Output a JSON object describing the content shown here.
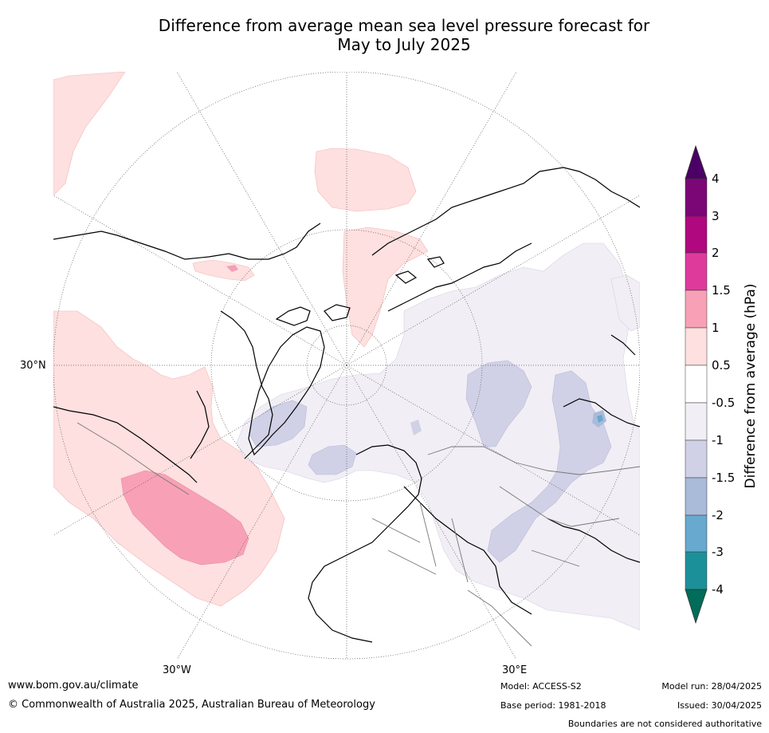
{
  "title": {
    "line1": "Difference from average mean sea level pressure forecast for",
    "line2": "May to July 2025"
  },
  "map": {
    "projection": "north polar stereographic",
    "longitude_labels": [
      "30°W",
      "30°E"
    ],
    "latitude_labels": [
      "30°N"
    ]
  },
  "colorbar": {
    "title": "Difference from average (hPa)",
    "ticks": [
      "4",
      "3",
      "2",
      "1.5",
      "1",
      "0.5",
      "-0.5",
      "-1",
      "-1.5",
      "-2",
      "-3",
      "-4"
    ],
    "colors": {
      "above_4": "#4b0066",
      "3_to_4": "#7b0676",
      "2_to_3": "#b0087e",
      "1.5_to_2": "#de3a9b",
      "1_to_1.5": "#f8a1b6",
      "0.5_to_1": "#fde0df",
      "neutral": "#ffffff",
      "-1_to_-0.5": "#f1eef5",
      "-1.5_to_-1": "#d0d1e6",
      "-2_to_-1.5": "#a9bbd9",
      "-3_to_-2": "#67a9cf",
      "-4_to_-3": "#1c9099",
      "below_-4": "#016c59"
    }
  },
  "footer": {
    "url": "www.bom.gov.au/climate",
    "copyright": "© Commonwealth of Australia 2025, Australian Bureau of Meteorology",
    "model": "Model: ACCESS-S2",
    "base_period": "Base period: 1981-2018",
    "model_run": "Model run: 28/04/2025",
    "issued": "Issued: 30/04/2025",
    "disclaimer": "Boundaries are not considered authoritative"
  }
}
